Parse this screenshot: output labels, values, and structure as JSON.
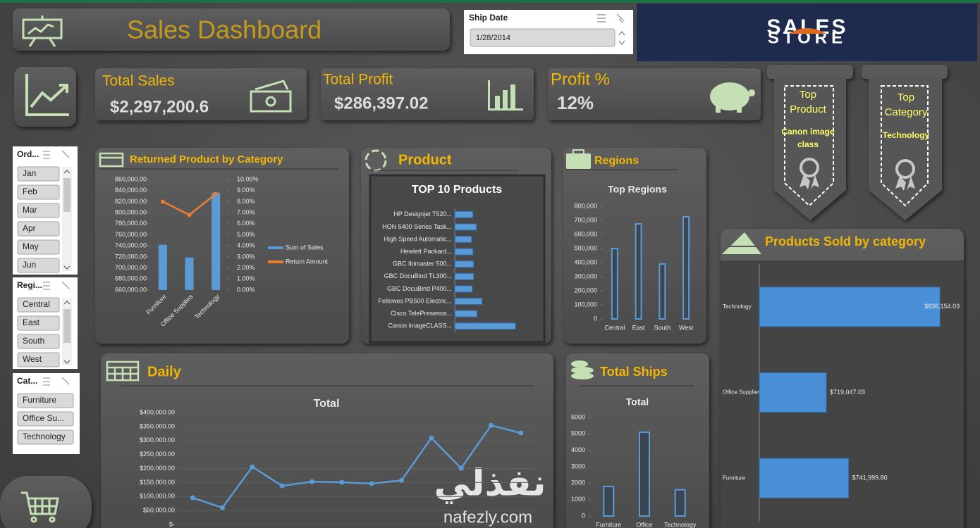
{
  "header": {
    "title": "Sales Dashboard"
  },
  "ship_date": {
    "label": "Ship Date",
    "value": "1/28/2014"
  },
  "logo": {
    "line1": "SALES",
    "line2": "STORE"
  },
  "kpis": [
    {
      "label": "Total Sales",
      "value": "$2,297,200.6"
    },
    {
      "label": "Total Profit",
      "value": "$286,397.02"
    },
    {
      "label": "Profit %",
      "value": "12%"
    }
  ],
  "ribbons": [
    {
      "label": "Top Product",
      "value": "Canon image class"
    },
    {
      "label": "Top Category",
      "value": "Technology"
    }
  ],
  "slicers": [
    {
      "title": "Ord...",
      "items": [
        "Jan",
        "Feb",
        "Mar",
        "Apr",
        "May",
        "Jun"
      ]
    },
    {
      "title": "Regi...",
      "items": [
        "Central",
        "East",
        "South",
        "West"
      ]
    },
    {
      "title": "Cat...",
      "items": [
        "Furniture",
        "Office Su...",
        "Technology"
      ]
    }
  ],
  "panels": {
    "product": "Product",
    "regions": "Regions",
    "daily": "Daily",
    "ships": "Total Ships"
  },
  "watermark": {
    "arabic": "نفذلي",
    "latin": "nafezly.com"
  },
  "chart_data": [
    {
      "type": "combo",
      "title": "Returned Product by Category",
      "categories": [
        "Furniture",
        "Office Supplies",
        "Technology"
      ],
      "series": [
        {
          "name": "Sum of Sales",
          "type": "bar",
          "color": "#5b9bd5",
          "values": [
            741999.8,
            719047.03,
            836154.03
          ]
        },
        {
          "name": "Return Amount",
          "type": "line",
          "axis": "y2",
          "color": "#ed7d31",
          "values": [
            8.0,
            6.8,
            8.7
          ]
        }
      ],
      "ylim": [
        660000,
        860000
      ],
      "yticks": [
        {
          "value": 660000,
          "label": "660,000.00"
        },
        {
          "value": 680000,
          "label": "680,000.00"
        },
        {
          "value": 700000,
          "label": "700,000.00"
        },
        {
          "value": 720000,
          "label": "720,000.00"
        },
        {
          "value": 740000,
          "label": "740,000.00"
        },
        {
          "value": 760000,
          "label": "760,000.00"
        },
        {
          "value": 780000,
          "label": "780,000.00"
        },
        {
          "value": 800000,
          "label": "800,000.00"
        },
        {
          "value": 820000,
          "label": "820,000.00"
        },
        {
          "value": 840000,
          "label": "840,000.00"
        },
        {
          "value": 860000,
          "label": "860,000.00"
        }
      ],
      "y2lim": [
        0,
        10
      ],
      "y2ticks": [
        {
          "value": 0,
          "label": "0.00%"
        },
        {
          "value": 1,
          "label": "1.00%"
        },
        {
          "value": 2,
          "label": "2.00%"
        },
        {
          "value": 3,
          "label": "3.00%"
        },
        {
          "value": 4,
          "label": "4.00%"
        },
        {
          "value": 5,
          "label": "5.00%"
        },
        {
          "value": 6,
          "label": "6.00%"
        },
        {
          "value": 7,
          "label": "7.00%"
        },
        {
          "value": 8,
          "label": "8.00%"
        },
        {
          "value": 9,
          "label": "9.00%"
        },
        {
          "value": 10,
          "label": "10.00%"
        }
      ],
      "legend": "right"
    },
    {
      "type": "bar",
      "orientation": "horizontal",
      "title": "TOP 10 Products",
      "categories": [
        "HP Designjet T520...",
        "HON 5400 Series Task...",
        "High Speed Automatic...",
        "Hewlett Packard...",
        "GBC Ibimaster 500...",
        "GBC DocuBind TL300...",
        "GBC DocuBind P400...",
        "Fellowes PB500 Electric...",
        "Cisco TelePresence...",
        "Canon imageCLASS..."
      ],
      "values": [
        18400,
        22000,
        17000,
        18400,
        19100,
        19100,
        17700,
        27600,
        22600,
        61600
      ],
      "xlim": [
        0,
        80000
      ],
      "color": "#5b9bd5"
    },
    {
      "type": "bar",
      "title": "Top Regions",
      "categories": [
        "Central",
        "East",
        "South",
        "West"
      ],
      "values": [
        500000,
        675000,
        390000,
        725000
      ],
      "ylim": [
        0,
        800000
      ],
      "yticks": [
        0,
        {
          "value": 100000,
          "label": "100,000"
        },
        {
          "value": 200000,
          "label": "200,000"
        },
        {
          "value": 300000,
          "label": "300,000"
        },
        {
          "value": 400000,
          "label": "400,000"
        },
        {
          "value": 500000,
          "label": "500,000"
        },
        {
          "value": 600000,
          "label": "600,000"
        },
        {
          "value": 700000,
          "label": "700,000"
        },
        {
          "value": 800000,
          "label": "800,000"
        }
      ],
      "color": "#5b9bd5",
      "bar_style": "outline"
    },
    {
      "type": "bar",
      "orientation": "horizontal",
      "title": "Products Sold by category",
      "categories": [
        "Technology",
        "Office Supplies",
        "Furniture"
      ],
      "values": [
        836154.03,
        719047.03,
        741999.8
      ],
      "value_labels": [
        "$836,154.03",
        "$719,047.03",
        "$741,999.80"
      ],
      "xlim": [
        650000,
        860000
      ],
      "color": "#4a90d9"
    },
    {
      "type": "line",
      "title": "Total",
      "categories": [
        null,
        null,
        null,
        null,
        null,
        null,
        null,
        null,
        null,
        null,
        null,
        null
      ],
      "values": [
        95500,
        60000,
        206000,
        138000,
        153000,
        151000,
        146000,
        158000,
        309000,
        201000,
        354000,
        327000
      ],
      "ylim": [
        0,
        400000
      ],
      "yticks": [
        {
          "value": 0,
          "label": "$-"
        },
        {
          "value": 50000,
          "label": "$50,000.00"
        },
        {
          "value": 100000,
          "label": "$100,000.00"
        },
        {
          "value": 150000,
          "label": "$150,000.00"
        },
        {
          "value": 200000,
          "label": "$200,000.00"
        },
        {
          "value": 250000,
          "label": "$250,000.00"
        },
        {
          "value": 300000,
          "label": "$300,000.00"
        },
        {
          "value": 350000,
          "label": "$350,000.00"
        },
        {
          "value": 400000,
          "label": "$400,000.00"
        }
      ],
      "color": "#5b9bd5",
      "grid": true
    },
    {
      "type": "bar",
      "title": "Total",
      "categories": [
        "Furniture",
        "Office",
        "Technology"
      ],
      "values": [
        1800,
        5100,
        1600
      ],
      "ylim": [
        0,
        6000
      ],
      "yticks": [
        0,
        1000,
        2000,
        3000,
        4000,
        5000,
        6000
      ],
      "color": "#5b9bd5",
      "bar_style": "outline"
    }
  ]
}
